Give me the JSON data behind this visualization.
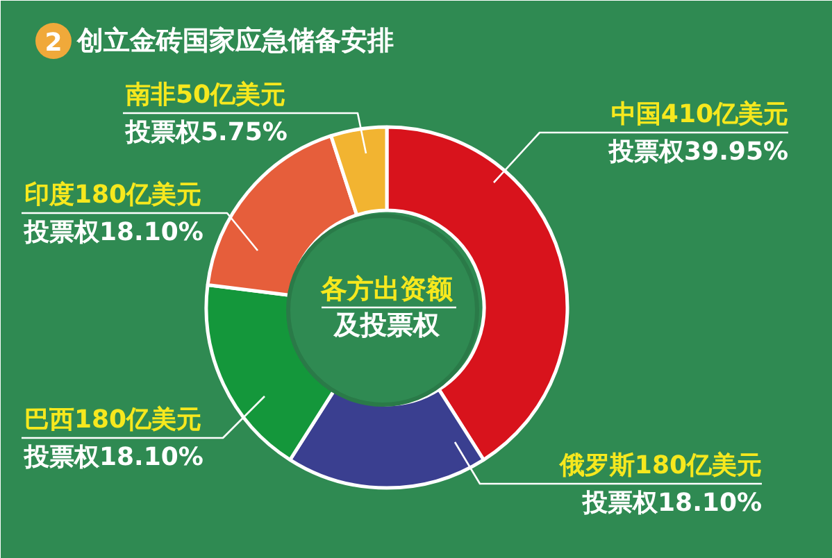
{
  "chart_data": {
    "type": "donut",
    "title": "创立金砖国家应急储备安排",
    "categories": [
      "中国",
      "俄罗斯",
      "巴西",
      "印度",
      "南非"
    ],
    "values": [
      410,
      180,
      180,
      180,
      50
    ],
    "colors": [
      "#d8131c",
      "#3a3f90",
      "#14973b",
      "#e65e3b",
      "#f2b431"
    ],
    "value_labels": [
      "410亿美元",
      "180亿美元",
      "180亿美元",
      "180亿美元",
      "50亿美元"
    ],
    "annotations": [
      "2",
      "各方出资额",
      "及投票权",
      {
        "text": "投票权39.95%",
        "x": "中国"
      },
      {
        "text": "投票权18.10%",
        "x": "俄罗斯"
      },
      {
        "text": "投票权18.10%",
        "x": "巴西"
      },
      {
        "text": "投票权18.10%",
        "x": "印度"
      },
      {
        "text": "投票权5.75%",
        "x": "南非"
      }
    ]
  }
}
